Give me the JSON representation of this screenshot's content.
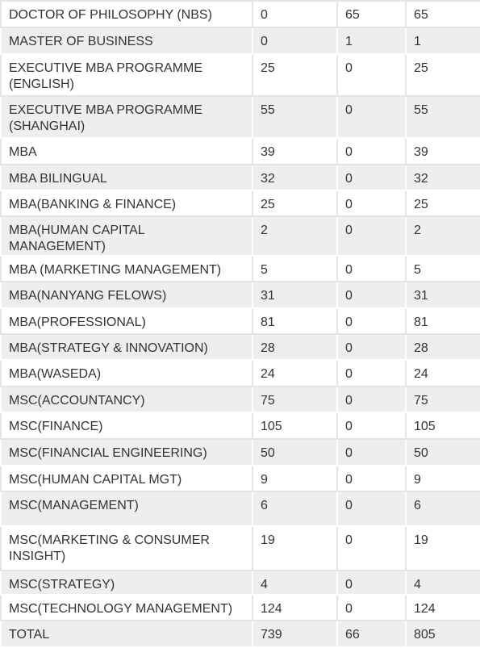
{
  "table": {
    "rows": [
      [
        "DOCTOR OF PHILOSOPHY (NBS)",
        0,
        65,
        65
      ],
      [
        "MASTER OF BUSINESS",
        0,
        1,
        1
      ],
      [
        "EXECUTIVE MBA PROGRAMME (ENGLISH)",
        25,
        0,
        25
      ],
      [
        "EXECUTIVE MBA PROGRAMME (SHANGHAI)",
        55,
        0,
        55
      ],
      [
        "MBA",
        39,
        0,
        39
      ],
      [
        "MBA BILINGUAL",
        32,
        0,
        32
      ],
      [
        "MBA(BANKING & FINANCE)",
        25,
        0,
        25
      ],
      [
        "MBA(HUMAN CAPITAL MANAGEMENT)",
        2,
        0,
        2
      ],
      [
        "MBA (MARKETING MANAGEMENT)",
        5,
        0,
        5
      ],
      [
        "MBA(NANYANG FELOWS)",
        31,
        0,
        31
      ],
      [
        "MBA(PROFESSIONAL)",
        81,
        0,
        81
      ],
      [
        "MBA(STRATEGY & INNOVATION)",
        28,
        0,
        28
      ],
      [
        "MBA(WASEDA)",
        24,
        0,
        24
      ],
      [
        "MSC(ACCOUNTANCY)",
        75,
        0,
        75
      ],
      [
        "MSC(FINANCE)",
        105,
        0,
        105
      ],
      [
        "MSC(FINANCIAL ENGINEERING)",
        50,
        0,
        50
      ],
      [
        "MSC(HUMAN CAPITAL MGT)",
        9,
        0,
        9
      ],
      [
        "MSC(MANAGEMENT)",
        6,
        0,
        6
      ],
      [
        "MSC(MARKETING & CONSUMER INSIGHT)",
        19,
        0,
        19
      ],
      [
        "MSC(STRATEGY)",
        4,
        0,
        4
      ],
      [
        "MSC(TECHNOLOGY MANAGEMENT)",
        124,
        0,
        124
      ],
      [
        "TOTAL",
        739,
        66,
        805
      ]
    ]
  }
}
